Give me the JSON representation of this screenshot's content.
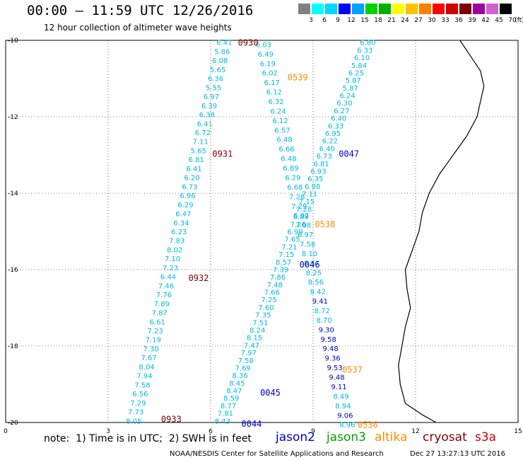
{
  "header": {
    "title": "00:00 – 11:59 UTC 12/26/2016",
    "subtitle": "12 hour collection of altimeter wave heights"
  },
  "colorbar": {
    "unit": "(ft)",
    "labels": [
      "3",
      "6",
      "9",
      "12",
      "15",
      "18",
      "21",
      "24",
      "27",
      "30",
      "33",
      "36",
      "39",
      "42",
      "45",
      "70"
    ],
    "colors": [
      "#808080",
      "#00ffff",
      "#00d8ff",
      "#0000ff",
      "#00a0ff",
      "#00d000",
      "#00b000",
      "#ffff00",
      "#ffc000",
      "#ff8000",
      "#ff0000",
      "#d00000",
      "#800000",
      "#a000a0",
      "#d060d0",
      "#000000"
    ]
  },
  "axes": {
    "x_ticks": [
      "0",
      "3",
      "6",
      "9",
      "12",
      "15"
    ],
    "y_ticks": [
      "-10",
      "-12",
      "-14",
      "-16",
      "-18",
      "-20"
    ]
  },
  "chart_data": {
    "type": "scatter",
    "xlim": [
      0,
      15
    ],
    "ylim": [
      -20,
      -10
    ],
    "grid": true,
    "coastline": [
      [
        13.3,
        -10
      ],
      [
        13.6,
        -10.4
      ],
      [
        13.9,
        -10.8
      ],
      [
        14.0,
        -11.2
      ],
      [
        13.9,
        -11.6
      ],
      [
        13.8,
        -12
      ],
      [
        13.5,
        -12.5
      ],
      [
        13.1,
        -13
      ],
      [
        12.7,
        -13.5
      ],
      [
        12.4,
        -14
      ],
      [
        12.2,
        -14.5
      ],
      [
        12.1,
        -15
      ],
      [
        11.9,
        -15.5
      ],
      [
        11.7,
        -16
      ],
      [
        11.75,
        -16.5
      ],
      [
        11.85,
        -17
      ],
      [
        11.7,
        -17.5
      ],
      [
        11.6,
        -18
      ],
      [
        11.5,
        -18.5
      ],
      [
        11.55,
        -19
      ],
      [
        11.7,
        -19.5
      ],
      [
        12.2,
        -19.8
      ],
      [
        12.6,
        -20
      ]
    ],
    "passes": [
      {
        "label": "0930",
        "sat": "cryosat",
        "color": "#800000",
        "lx": 6.8,
        "ly": -10.05
      },
      {
        "label": "0931",
        "sat": "cryosat",
        "color": "#800000",
        "lx": 6.05,
        "ly": -12.95
      },
      {
        "label": "0932",
        "sat": "cryosat",
        "color": "#800000",
        "lx": 5.35,
        "ly": -16.2
      },
      {
        "label": "0933",
        "sat": "cryosat",
        "color": "#800000",
        "lx": 4.55,
        "ly": -19.9
      },
      {
        "label": "0539",
        "sat": "altika",
        "color": "#ff8c00",
        "lx": 8.25,
        "ly": -10.95
      },
      {
        "label": "0538",
        "sat": "altika",
        "color": "#ff8c00",
        "lx": 9.05,
        "ly": -14.8
      },
      {
        "label": "0537",
        "sat": "altika",
        "color": "#ff8c00",
        "lx": 9.85,
        "ly": -18.6
      },
      {
        "label": "0536",
        "sat": "altika",
        "color": "#ff8c00",
        "lx": 10.3,
        "ly": -20.05
      },
      {
        "label": "0047",
        "sat": "jason2",
        "color": "#0000cc",
        "lx": 9.75,
        "ly": -12.95
      },
      {
        "label": "0046",
        "sat": "jason2",
        "color": "#0000cc",
        "lx": 8.6,
        "ly": -15.85
      },
      {
        "label": "0045",
        "sat": "jason2",
        "color": "#0000cc",
        "lx": 7.45,
        "ly": -19.2
      },
      {
        "label": "0044",
        "sat": "jason2",
        "color": "#0000cc",
        "lx": 6.9,
        "ly": -20.02
      }
    ],
    "tracks": [
      {
        "name": "cryosat",
        "color": "#00b8e0",
        "x0": 6.4,
        "y0": -10.05,
        "x1": 3.75,
        "y1": -19.95,
        "values": [
          "6.41",
          "5.86",
          "6.08",
          "5.65",
          "6.36",
          "5.55",
          "6.97",
          "6.39",
          "6.38",
          "6.41",
          "6.72",
          "7.11",
          "5.65",
          "6.81",
          "6.41",
          "6.20",
          "6.73",
          "6.96",
          "6.29",
          "6.47",
          "6.34",
          "6.23",
          "7.83",
          "8.02",
          "7.10",
          "7.23",
          "6.44",
          "7.46",
          "7.76",
          "7.89",
          "7.87",
          "6.61",
          "7.23",
          "7.19",
          "7.30",
          "7.67",
          "8.04",
          "7.94",
          "7.58",
          "6.56",
          "7.29",
          "7.73",
          "8.05"
        ]
      },
      {
        "name": "altika",
        "color": "#00b8e0",
        "x0": 7.55,
        "y0": -10.1,
        "x1": 10.0,
        "y1": -20.05,
        "values": [
          "6.03",
          "6.49",
          "6.19",
          "6.02",
          "6.17",
          "6.12",
          "6.32",
          "6.24",
          "6.12",
          "6.57",
          "6.48",
          "6.66",
          "6.48",
          "6.89",
          "6.29",
          "6.68",
          "7.26",
          "7.29",
          "6.92",
          "7.08",
          "6.97",
          "7.58",
          "8.10",
          "8.57",
          "8.25",
          "8.56",
          "8.42",
          "9.41",
          "8.72",
          "8.70",
          "9.30",
          "9.58",
          "9.48",
          "9.36",
          "9.53",
          "9.48",
          "9.11",
          "8.49",
          "8.94",
          "9.06",
          "8.96"
        ],
        "value_colors": {
          "9.41": "#0000cc",
          "9.30": "#0000cc",
          "9.58": "#0000cc",
          "9.48": "#0000cc",
          "9.36": "#0000cc",
          "9.53": "#0000cc",
          "9.11": "#0000cc",
          "9.06": "#0000cc"
        }
      },
      {
        "name": "jason2",
        "color": "#00b8e0",
        "x0": 10.6,
        "y0": -10.05,
        "x1": 6.35,
        "y1": -19.95,
        "values": [
          "6.80",
          "6.33",
          "6.10",
          "5.84",
          "6.25",
          "5.87",
          "5.87",
          "6.24",
          "6.30",
          "6.27",
          "6.40",
          "6.33",
          "6.95",
          "6.22",
          "6.40",
          "6.73",
          "6.81",
          "6.93",
          "6.35",
          "6.98",
          "7.11",
          "7.15",
          "7.28",
          "6.89",
          "7.26",
          "6.99",
          "7.65",
          "7.21",
          "7.15",
          "8.57",
          "7.39",
          "7.86",
          "7.48",
          "7.66",
          "7.25",
          "7.60",
          "7.35",
          "7.51",
          "8.24",
          "8.15",
          "7.47",
          "7.97",
          "7.58",
          "7.69",
          "8.36",
          "8.45",
          "8.47",
          "8.59",
          "8.77",
          "7.81",
          "8.43"
        ]
      }
    ]
  },
  "footer": {
    "note": "note:  1) Time is in UTC;  2) SWH is in feet",
    "legend": [
      {
        "name": "jason2",
        "color": "#0000cc"
      },
      {
        "name": "jason3",
        "color": "#00a000"
      },
      {
        "name": "altika",
        "color": "#ff8c00"
      },
      {
        "name": "cryosat",
        "color": "#800000"
      },
      {
        "name": "s3a",
        "color": "#cc0000"
      }
    ],
    "credit": "NOAA/NESDIS Center for Satellite Applications and Research",
    "timestamp": "Dec 27 13:27:13 UTC 2016"
  }
}
